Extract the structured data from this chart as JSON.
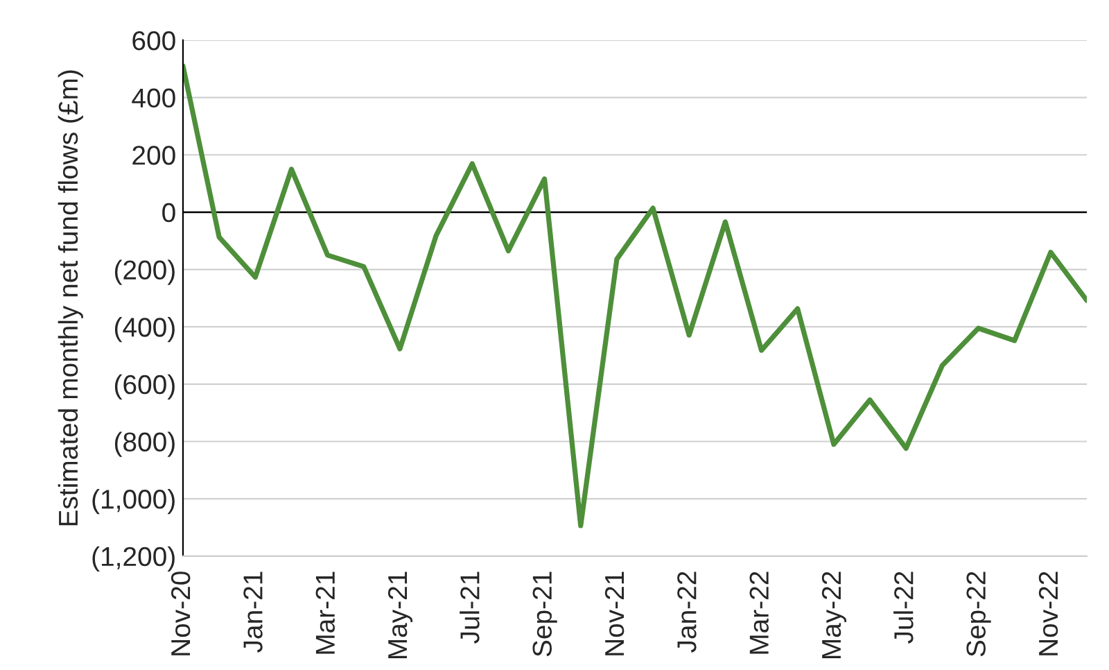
{
  "chart_data": {
    "type": "line",
    "ylabel": "Estimated monthly net fund flows (£m)",
    "categories": [
      "Nov-20",
      null,
      "Jan-21",
      null,
      "Mar-21",
      null,
      "May-21",
      null,
      "Jul-21",
      null,
      "Sep-21",
      null,
      "Nov-21",
      null,
      "Jan-22",
      null,
      "Mar-22",
      null,
      "May-22",
      null,
      "Jul-22",
      null,
      "Sep-22",
      null,
      "Nov-22",
      null
    ],
    "series": [
      {
        "color": "#4e8f3a",
        "values": [
          510,
          -87,
          -227,
          150,
          -150,
          -190,
          -477,
          -82,
          169,
          -135,
          116,
          -1094,
          -164,
          14,
          -429,
          -34,
          -482,
          -337,
          -810,
          -655,
          -824,
          -535,
          -405,
          -448,
          -140,
          -308
        ]
      }
    ],
    "ylim": [
      -1200,
      600
    ],
    "yticks": [
      600,
      400,
      200,
      0,
      {
        "value": -200,
        "label": "(200)"
      },
      {
        "value": -400,
        "label": "(400)"
      },
      {
        "value": -600,
        "label": "(600)"
      },
      {
        "value": -800,
        "label": "(800)"
      },
      {
        "value": -1000,
        "label": "(1,000)"
      },
      {
        "value": -1200,
        "label": "(1,200)"
      }
    ],
    "ref_lines": [
      {
        "axis": "y",
        "value": 0,
        "color": "#000000"
      }
    ],
    "grid": "y",
    "marker": "none",
    "line_style": "solid",
    "legend": false
  }
}
